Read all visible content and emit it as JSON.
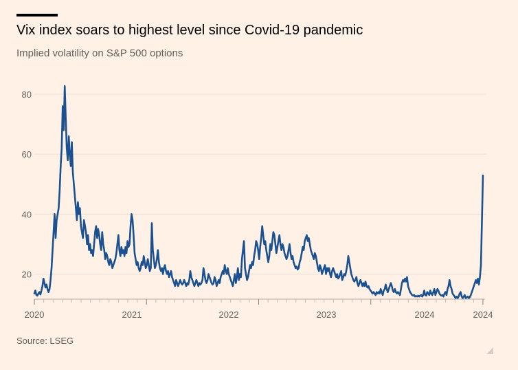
{
  "header": {
    "title": "Vix index soars to highest level since Covid-19 pandemic",
    "subtitle": "Implied volatility on S&P 500 options"
  },
  "footer": {
    "source": "Source: LSEG"
  },
  "colors": {
    "background": "#FFF1E5",
    "line": "#1B5190",
    "grid": "#E8DCD0",
    "text": "#66605C"
  },
  "chart_data": {
    "type": "line",
    "title": "Vix index soars to highest level since Covid-19 pandemic",
    "subtitle": "Implied volatility on S&P 500 options",
    "xlabel": "",
    "ylabel": "",
    "x_tick_labels": [
      "2020",
      "2021",
      "2022",
      "2023",
      "2024",
      "2024"
    ],
    "y_ticks": [
      20,
      40,
      60,
      80
    ],
    "ylim": [
      12,
      84
    ],
    "grid": true,
    "series": [
      {
        "values": [
          13.5,
          14.5,
          13.0,
          12.8,
          13.5,
          14.0,
          13.2,
          14.5,
          16.0,
          18.5,
          17.0,
          15.5,
          16.5,
          15.0,
          14.0,
          15.0,
          18.0,
          22.0,
          28.0,
          34.0,
          40.0,
          32.0,
          38.0,
          40.0,
          42.0,
          48.0,
          56.0,
          62.0,
          76.0,
          68.0,
          82.7,
          72.0,
          62.0,
          58.0,
          66.0,
          60.0,
          56.0,
          64.0,
          54.0,
          50.0,
          46.0,
          42.0,
          38.0,
          44.0,
          40.0,
          42.0,
          36.0,
          34.0,
          32.0,
          38.0,
          36.0,
          34.0,
          30.0,
          33.0,
          28.0,
          30.0,
          27.0,
          28.0,
          26.0,
          30.0,
          34.0,
          36.0,
          32.0,
          35.0,
          33.0,
          30.0,
          28.0,
          34.0,
          30.0,
          28.0,
          25.0,
          27.0,
          26.0,
          24.0,
          23.0,
          25.0,
          24.0,
          22.0,
          23.0,
          24.0,
          25.0,
          27.0,
          30.0,
          33.0,
          28.0,
          26.0,
          29.0,
          27.0,
          28.0,
          26.0,
          29.0,
          27.0,
          31.0,
          29.0,
          30.0,
          36.0,
          40.0,
          38.0,
          33.0,
          27.0,
          25.0,
          23.0,
          24.0,
          22.0,
          21.0,
          22.0,
          24.0,
          23.0,
          26.0,
          24.0,
          22.0,
          23.0,
          25.0,
          23.0,
          21.0,
          22.0,
          37.0,
          28.0,
          25.0,
          22.0,
          23.0,
          25.0,
          28.0,
          24.0,
          22.0,
          21.0,
          22.0,
          20.0,
          22.0,
          23.0,
          21.0,
          20.0,
          21.0,
          19.0,
          20.0,
          21.0,
          19.0,
          18.0,
          17.0,
          16.0,
          18.0,
          17.0,
          16.0,
          17.0,
          18.0,
          17.0,
          16.5,
          17.0,
          18.0,
          17.0,
          16.0,
          17.0,
          16.5,
          18.0,
          21.0,
          19.0,
          18.0,
          17.0,
          16.0,
          17.0,
          18.0,
          17.0,
          16.0,
          17.0,
          16.5,
          17.0,
          18.0,
          22.0,
          20.0,
          18.0,
          17.0,
          18.0,
          20.0,
          19.0,
          18.0,
          17.0,
          16.5,
          17.0,
          19.0,
          18.0,
          16.0,
          17.0,
          18.0,
          17.0,
          19.0,
          20.0,
          21.0,
          20.0,
          23.0,
          21.0,
          20.0,
          22.0,
          20.0,
          19.0,
          18.0,
          17.0,
          16.0,
          18.0,
          20.0,
          17.0,
          19.0,
          22.0,
          18.0,
          20.0,
          19.0,
          25.0,
          28.0,
          31.0,
          22.0,
          20.0,
          18.0,
          19.0,
          21.0,
          23.0,
          22.0,
          24.0,
          23.0,
          26.0,
          28.0,
          31.0,
          30.0,
          28.0,
          25.0,
          29.0,
          32.0,
          36.0,
          33.0,
          30.0,
          31.0,
          28.0,
          26.0,
          24.0,
          26.0,
          30.0,
          28.0,
          31.0,
          34.0,
          33.0,
          30.0,
          27.0,
          29.0,
          31.0,
          33.0,
          30.0,
          28.0,
          30.0,
          29.0,
          27.0,
          26.0,
          25.0,
          26.0,
          28.0,
          30.0,
          27.0,
          25.0,
          26.0,
          24.0,
          23.0,
          22.0,
          22.5,
          21.5,
          22.0,
          24.0,
          25.0,
          27.0,
          29.0,
          28.0,
          31.0,
          32.0,
          33.0,
          31.0,
          32.0,
          30.0,
          28.0,
          27.0,
          26.0,
          25.0,
          27.0,
          26.0,
          24.0,
          22.0,
          21.0,
          23.0,
          22.0,
          20.0,
          21.0,
          22.0,
          23.0,
          20.0,
          22.0,
          21.0,
          22.0,
          20.0,
          19.0,
          21.0,
          22.0,
          21.0,
          20.0,
          19.0,
          20.0,
          18.5,
          19.0,
          20.0,
          21.0,
          18.0,
          19.0,
          20.0,
          19.5,
          21.0,
          23.0,
          26.0,
          24.0,
          22.0,
          20.0,
          19.0,
          18.0,
          17.5,
          18.0,
          19.0,
          17.0,
          16.0,
          17.0,
          18.0,
          17.0,
          16.0,
          17.0,
          16.0,
          17.5,
          16.0,
          15.5,
          16.0,
          15.0,
          14.5,
          14.0,
          13.5,
          14.0,
          13.5,
          13.0,
          14.0,
          13.5,
          14.0,
          13.5,
          15.0,
          14.0,
          13.0,
          14.5,
          15.0,
          16.5,
          15.0,
          14.0,
          15.0,
          16.0,
          17.0,
          16.0,
          14.5,
          14.0,
          15.0,
          14.0,
          13.5,
          14.0,
          13.5,
          13.0,
          15.0,
          17.0,
          18.0,
          17.5,
          18.5,
          17.5,
          19.0,
          16.0,
          15.0,
          14.0,
          13.5,
          13.0,
          12.8,
          13.0,
          12.5,
          12.7,
          12.5,
          12.8,
          12.5,
          12.8,
          13.0,
          12.5,
          13.0,
          14.5,
          13.0,
          12.8,
          14.0,
          13.5,
          13.0,
          14.5,
          13.5,
          13.0,
          14.0,
          15.0,
          13.0,
          14.0,
          15.0,
          14.5,
          13.5,
          13.0,
          12.8,
          13.0,
          12.5,
          13.5,
          14.0,
          13.0,
          15.0,
          16.0,
          18.0,
          16.0,
          15.0,
          13.5,
          13.0,
          12.5,
          12.0,
          12.5,
          12.0,
          12.5,
          13.5,
          14.0,
          12.5,
          12.0,
          12.5,
          13.0,
          12.0,
          12.2,
          12.5,
          12.0,
          12.3,
          13.0,
          14.0,
          15.0,
          16.0,
          17.0,
          18.0,
          17.0,
          18.5,
          16.5,
          19.0,
          23.0,
          38.0,
          52.9
        ]
      }
    ]
  }
}
